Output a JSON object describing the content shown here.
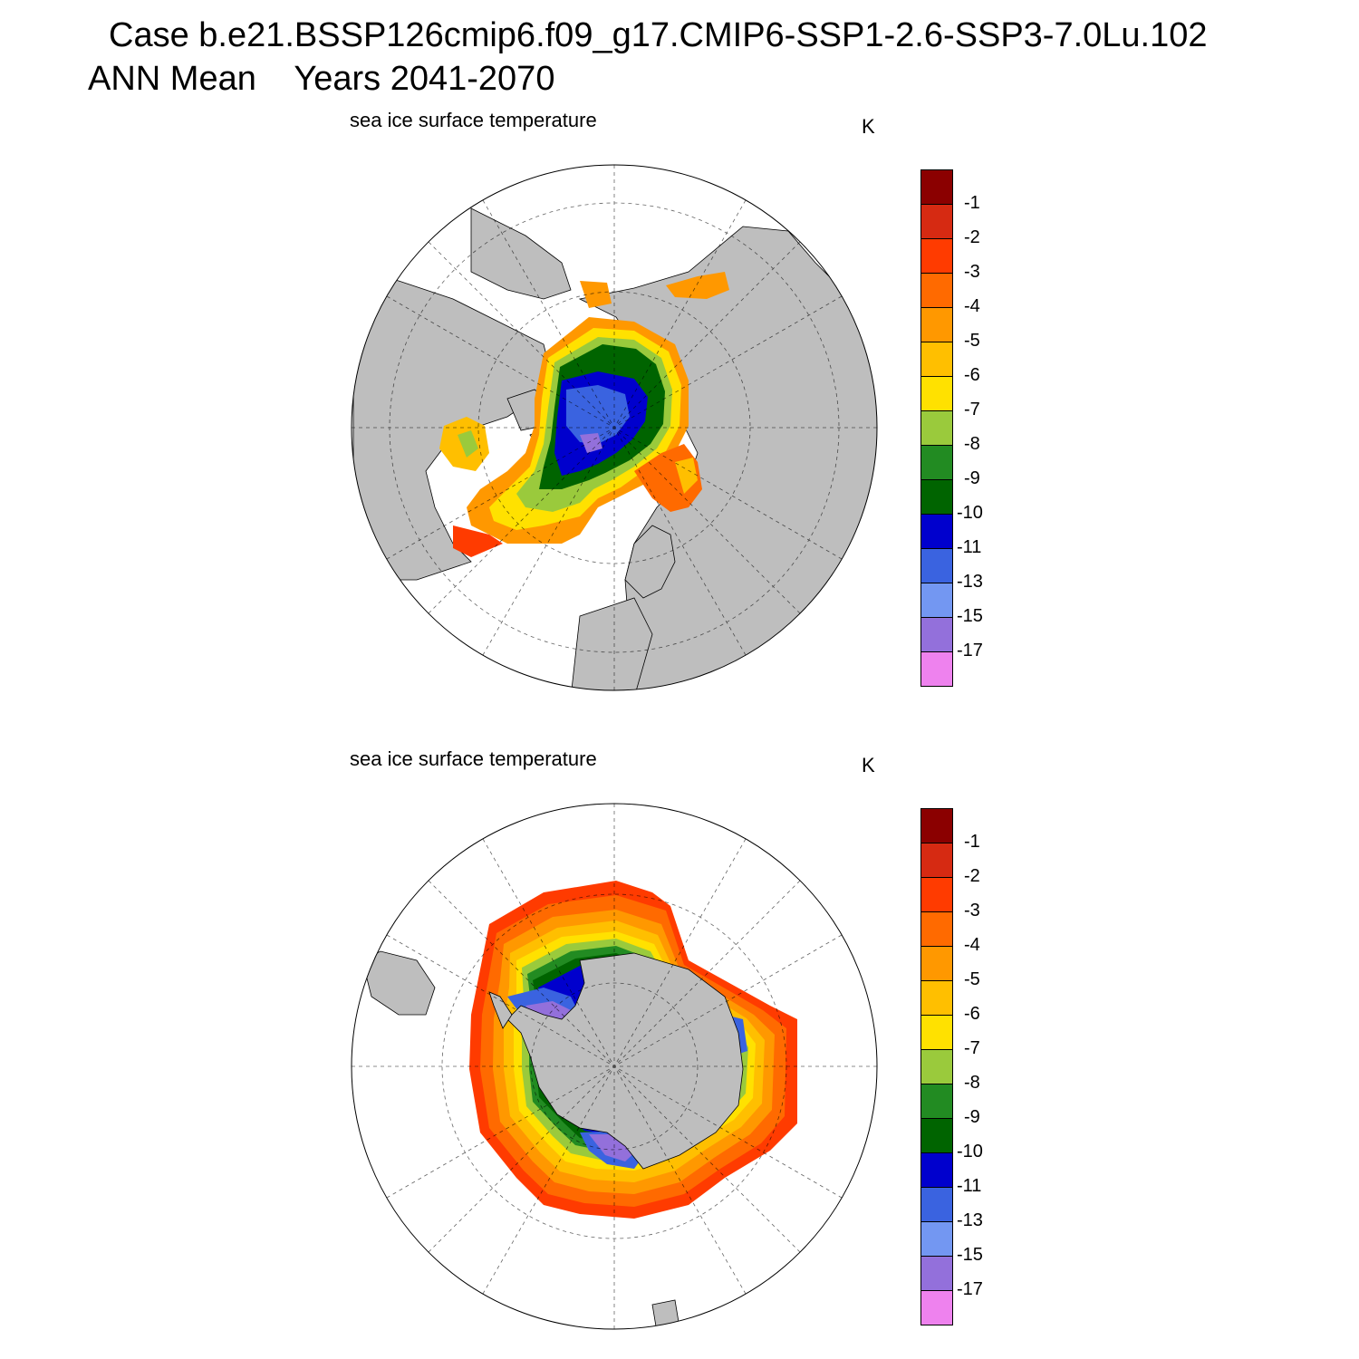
{
  "header": {
    "case_line": "Case b.e21.BSSP126cmip6.f09_g17.CMIP6-SSP1-2.6-SSP3-7.0Lu.102",
    "mean_line": "ANN Mean    Years 2041-2070"
  },
  "colorbar": {
    "labels": [
      "-1",
      "-2",
      "-3",
      "-4",
      "-5",
      "-6",
      "-7",
      "-8",
      "-9",
      "-10",
      "-11",
      "-13",
      "-15",
      "-17"
    ],
    "colors": [
      "#8b0000",
      "#d62a12",
      "#ff3b00",
      "#ff6a00",
      "#ff9800",
      "#ffbf00",
      "#ffe100",
      "#9aca3c",
      "#228b22",
      "#006400",
      "#0000cd",
      "#3a63e0",
      "#7397f2",
      "#9370db",
      "#ee82ee"
    ]
  },
  "panels": [
    {
      "id": "nh",
      "subtitle": "sea ice surface temperature",
      "units": "K",
      "hemisphere": "north"
    },
    {
      "id": "sh",
      "subtitle": "sea ice surface temperature",
      "units": "K",
      "hemisphere": "south"
    }
  ]
}
